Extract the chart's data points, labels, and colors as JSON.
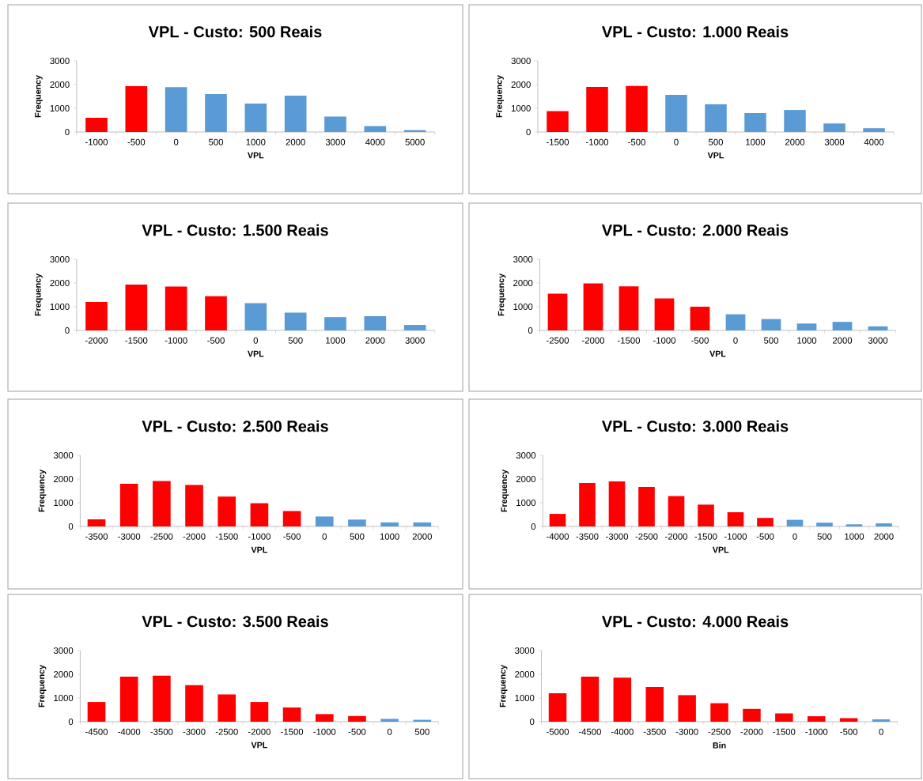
{
  "chart_data": [
    {
      "type": "bar",
      "title": "VPL - Custo: 500 Reais",
      "xlabel": "VPL",
      "ylabel": "Frequency",
      "categories": [
        "-1000",
        "-500",
        "0",
        "500",
        "1000",
        "2000",
        "3000",
        "4000",
        "5000"
      ],
      "values": [
        600,
        1930,
        1890,
        1600,
        1200,
        1530,
        650,
        250,
        80
      ],
      "colors": [
        "#ff0000",
        "#ff0000",
        "#5b9bd5",
        "#5b9bd5",
        "#5b9bd5",
        "#5b9bd5",
        "#5b9bd5",
        "#5b9bd5",
        "#5b9bd5"
      ],
      "ylim": [
        0,
        3000
      ],
      "yticks": [
        0,
        1000,
        2000,
        3000
      ]
    },
    {
      "type": "bar",
      "title": "VPL - Custo: 1.000 Reais",
      "xlabel": "VPL",
      "ylabel": "Frequency",
      "categories": [
        "-1500",
        "-1000",
        "-500",
        "0",
        "500",
        "1000",
        "2000",
        "3000",
        "4000"
      ],
      "values": [
        880,
        1900,
        1940,
        1570,
        1170,
        800,
        930,
        360,
        160
      ],
      "colors": [
        "#ff0000",
        "#ff0000",
        "#ff0000",
        "#5b9bd5",
        "#5b9bd5",
        "#5b9bd5",
        "#5b9bd5",
        "#5b9bd5",
        "#5b9bd5"
      ],
      "ylim": [
        0,
        3000
      ],
      "yticks": [
        0,
        1000,
        2000,
        3000
      ]
    },
    {
      "type": "bar",
      "title": "VPL - Custo: 1.500 Reais",
      "xlabel": "VPL",
      "ylabel": "Frequency",
      "categories": [
        "-2000",
        "-1500",
        "-1000",
        "-500",
        "0",
        "500",
        "1000",
        "2000",
        "3000"
      ],
      "values": [
        1200,
        1930,
        1850,
        1440,
        1150,
        750,
        560,
        600,
        230
      ],
      "colors": [
        "#ff0000",
        "#ff0000",
        "#ff0000",
        "#ff0000",
        "#5b9bd5",
        "#5b9bd5",
        "#5b9bd5",
        "#5b9bd5",
        "#5b9bd5"
      ],
      "ylim": [
        0,
        3000
      ],
      "yticks": [
        0,
        1000,
        2000,
        3000
      ]
    },
    {
      "type": "bar",
      "title": "VPL - Custo: 2.000 Reais",
      "xlabel": "VPL",
      "ylabel": "Frequency",
      "categories": [
        "-2500",
        "-2000",
        "-1500",
        "-1000",
        "-500",
        "0",
        "500",
        "1000",
        "2000",
        "3000"
      ],
      "values": [
        1550,
        1980,
        1860,
        1350,
        1000,
        680,
        480,
        290,
        360,
        170
      ],
      "colors": [
        "#ff0000",
        "#ff0000",
        "#ff0000",
        "#ff0000",
        "#ff0000",
        "#5b9bd5",
        "#5b9bd5",
        "#5b9bd5",
        "#5b9bd5",
        "#5b9bd5"
      ],
      "ylim": [
        0,
        3000
      ],
      "yticks": [
        0,
        1000,
        2000,
        3000
      ]
    },
    {
      "type": "bar",
      "title": "VPL - Custo: 2.500 Reais",
      "xlabel": "VPL",
      "ylabel": "Frequency",
      "categories": [
        "-3500",
        "-3000",
        "-2500",
        "-2000",
        "-1500",
        "-1000",
        "-500",
        "0",
        "500",
        "1000",
        "2000"
      ],
      "values": [
        300,
        1800,
        1920,
        1750,
        1260,
        980,
        650,
        420,
        290,
        170,
        170
      ],
      "colors": [
        "#ff0000",
        "#ff0000",
        "#ff0000",
        "#ff0000",
        "#ff0000",
        "#ff0000",
        "#ff0000",
        "#5b9bd5",
        "#5b9bd5",
        "#5b9bd5",
        "#5b9bd5"
      ],
      "ylim": [
        0,
        3000
      ],
      "yticks": [
        0,
        1000,
        2000,
        3000
      ]
    },
    {
      "type": "bar",
      "title": "VPL - Custo: 3.000 Reais",
      "xlabel": "VPL",
      "ylabel": "Frequency",
      "categories": [
        "-4000",
        "-3500",
        "-3000",
        "-2500",
        "-2000",
        "-1500",
        "-1000",
        "-500",
        "0",
        "500",
        "1000",
        "2000"
      ],
      "values": [
        530,
        1830,
        1900,
        1670,
        1280,
        920,
        600,
        360,
        280,
        160,
        90,
        130
      ],
      "colors": [
        "#ff0000",
        "#ff0000",
        "#ff0000",
        "#ff0000",
        "#ff0000",
        "#ff0000",
        "#ff0000",
        "#ff0000",
        "#5b9bd5",
        "#5b9bd5",
        "#5b9bd5",
        "#5b9bd5"
      ],
      "ylim": [
        0,
        3000
      ],
      "yticks": [
        0,
        1000,
        2000,
        3000
      ]
    },
    {
      "type": "bar",
      "title": "VPL - Custo: 3.500 Reais",
      "xlabel": "VPL",
      "ylabel": "Frequency",
      "categories": [
        "-4500",
        "-4000",
        "-3500",
        "-3000",
        "-2500",
        "-2000",
        "-1500",
        "-1000",
        "-500",
        "0",
        "500"
      ],
      "values": [
        830,
        1900,
        1940,
        1540,
        1150,
        830,
        600,
        320,
        240,
        120,
        80
      ],
      "colors": [
        "#ff0000",
        "#ff0000",
        "#ff0000",
        "#ff0000",
        "#ff0000",
        "#ff0000",
        "#ff0000",
        "#ff0000",
        "#ff0000",
        "#5b9bd5",
        "#5b9bd5"
      ],
      "ylim": [
        0,
        3000
      ],
      "yticks": [
        0,
        1000,
        2000,
        3000
      ]
    },
    {
      "type": "bar",
      "title": "VPL - Custo: 4.000 Reais",
      "xlabel": "Bin",
      "ylabel": "Frequency",
      "categories": [
        "-5000",
        "-4500",
        "-4000",
        "-3500",
        "-3000",
        "-2500",
        "-2000",
        "-1500",
        "-1000",
        "-500",
        "0"
      ],
      "values": [
        1200,
        1900,
        1860,
        1470,
        1120,
        780,
        540,
        350,
        230,
        150,
        100
      ],
      "colors": [
        "#ff0000",
        "#ff0000",
        "#ff0000",
        "#ff0000",
        "#ff0000",
        "#ff0000",
        "#ff0000",
        "#ff0000",
        "#ff0000",
        "#ff0000",
        "#5b9bd5"
      ],
      "ylim": [
        0,
        3000
      ],
      "yticks": [
        0,
        1000,
        2000,
        3000
      ]
    }
  ]
}
